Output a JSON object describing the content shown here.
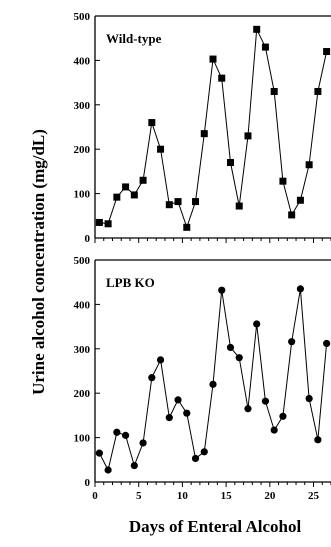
{
  "chart_data": [
    {
      "type": "line",
      "panel_label": "Wild-type",
      "marker": "square",
      "ylim": [
        0,
        500
      ],
      "yticks": [
        "0",
        "100",
        "200",
        "300",
        "400",
        "500"
      ],
      "xlim": [
        0,
        27
      ],
      "x": [
        0.5,
        1.5,
        2.5,
        3.5,
        4.5,
        5.5,
        6.5,
        7.5,
        8.5,
        9.5,
        10.5,
        11.5,
        12.5,
        13.5,
        14.5,
        15.5,
        16.5,
        17.5,
        18.5,
        19.5,
        20.5,
        21.5,
        22.5,
        23.5,
        24.5,
        25.5,
        26.5
      ],
      "y": [
        35,
        32,
        92,
        115,
        97,
        130,
        260,
        200,
        75,
        82,
        24,
        82,
        235,
        403,
        360,
        170,
        72,
        230,
        470,
        430,
        330,
        128,
        52,
        85,
        165,
        330,
        420
      ]
    },
    {
      "type": "line",
      "panel_label": "LPB KO",
      "marker": "circle",
      "ylim": [
        0,
        500
      ],
      "yticks": [
        "0",
        "100",
        "200",
        "300",
        "400",
        "500"
      ],
      "xlim": [
        0,
        27
      ],
      "xticks": [
        "0",
        "5",
        "10",
        "15",
        "20",
        "25"
      ],
      "x": [
        0.5,
        1.5,
        2.5,
        3.5,
        4.5,
        5.5,
        6.5,
        7.5,
        8.5,
        9.5,
        10.5,
        11.5,
        12.5,
        13.5,
        14.5,
        15.5,
        16.5,
        17.5,
        18.5,
        19.5,
        20.5,
        21.5,
        22.5,
        23.5,
        24.5,
        25.5,
        26.5
      ],
      "y": [
        65,
        27,
        112,
        105,
        37,
        88,
        235,
        275,
        145,
        185,
        155,
        53,
        68,
        220,
        432,
        303,
        280,
        165,
        356,
        182,
        117,
        148,
        316,
        435,
        188,
        95,
        312
      ]
    }
  ],
  "ylabel": "Urine alcohol concentration (mg/dL)",
  "xlabel": "Days of Enteral Alcohol"
}
